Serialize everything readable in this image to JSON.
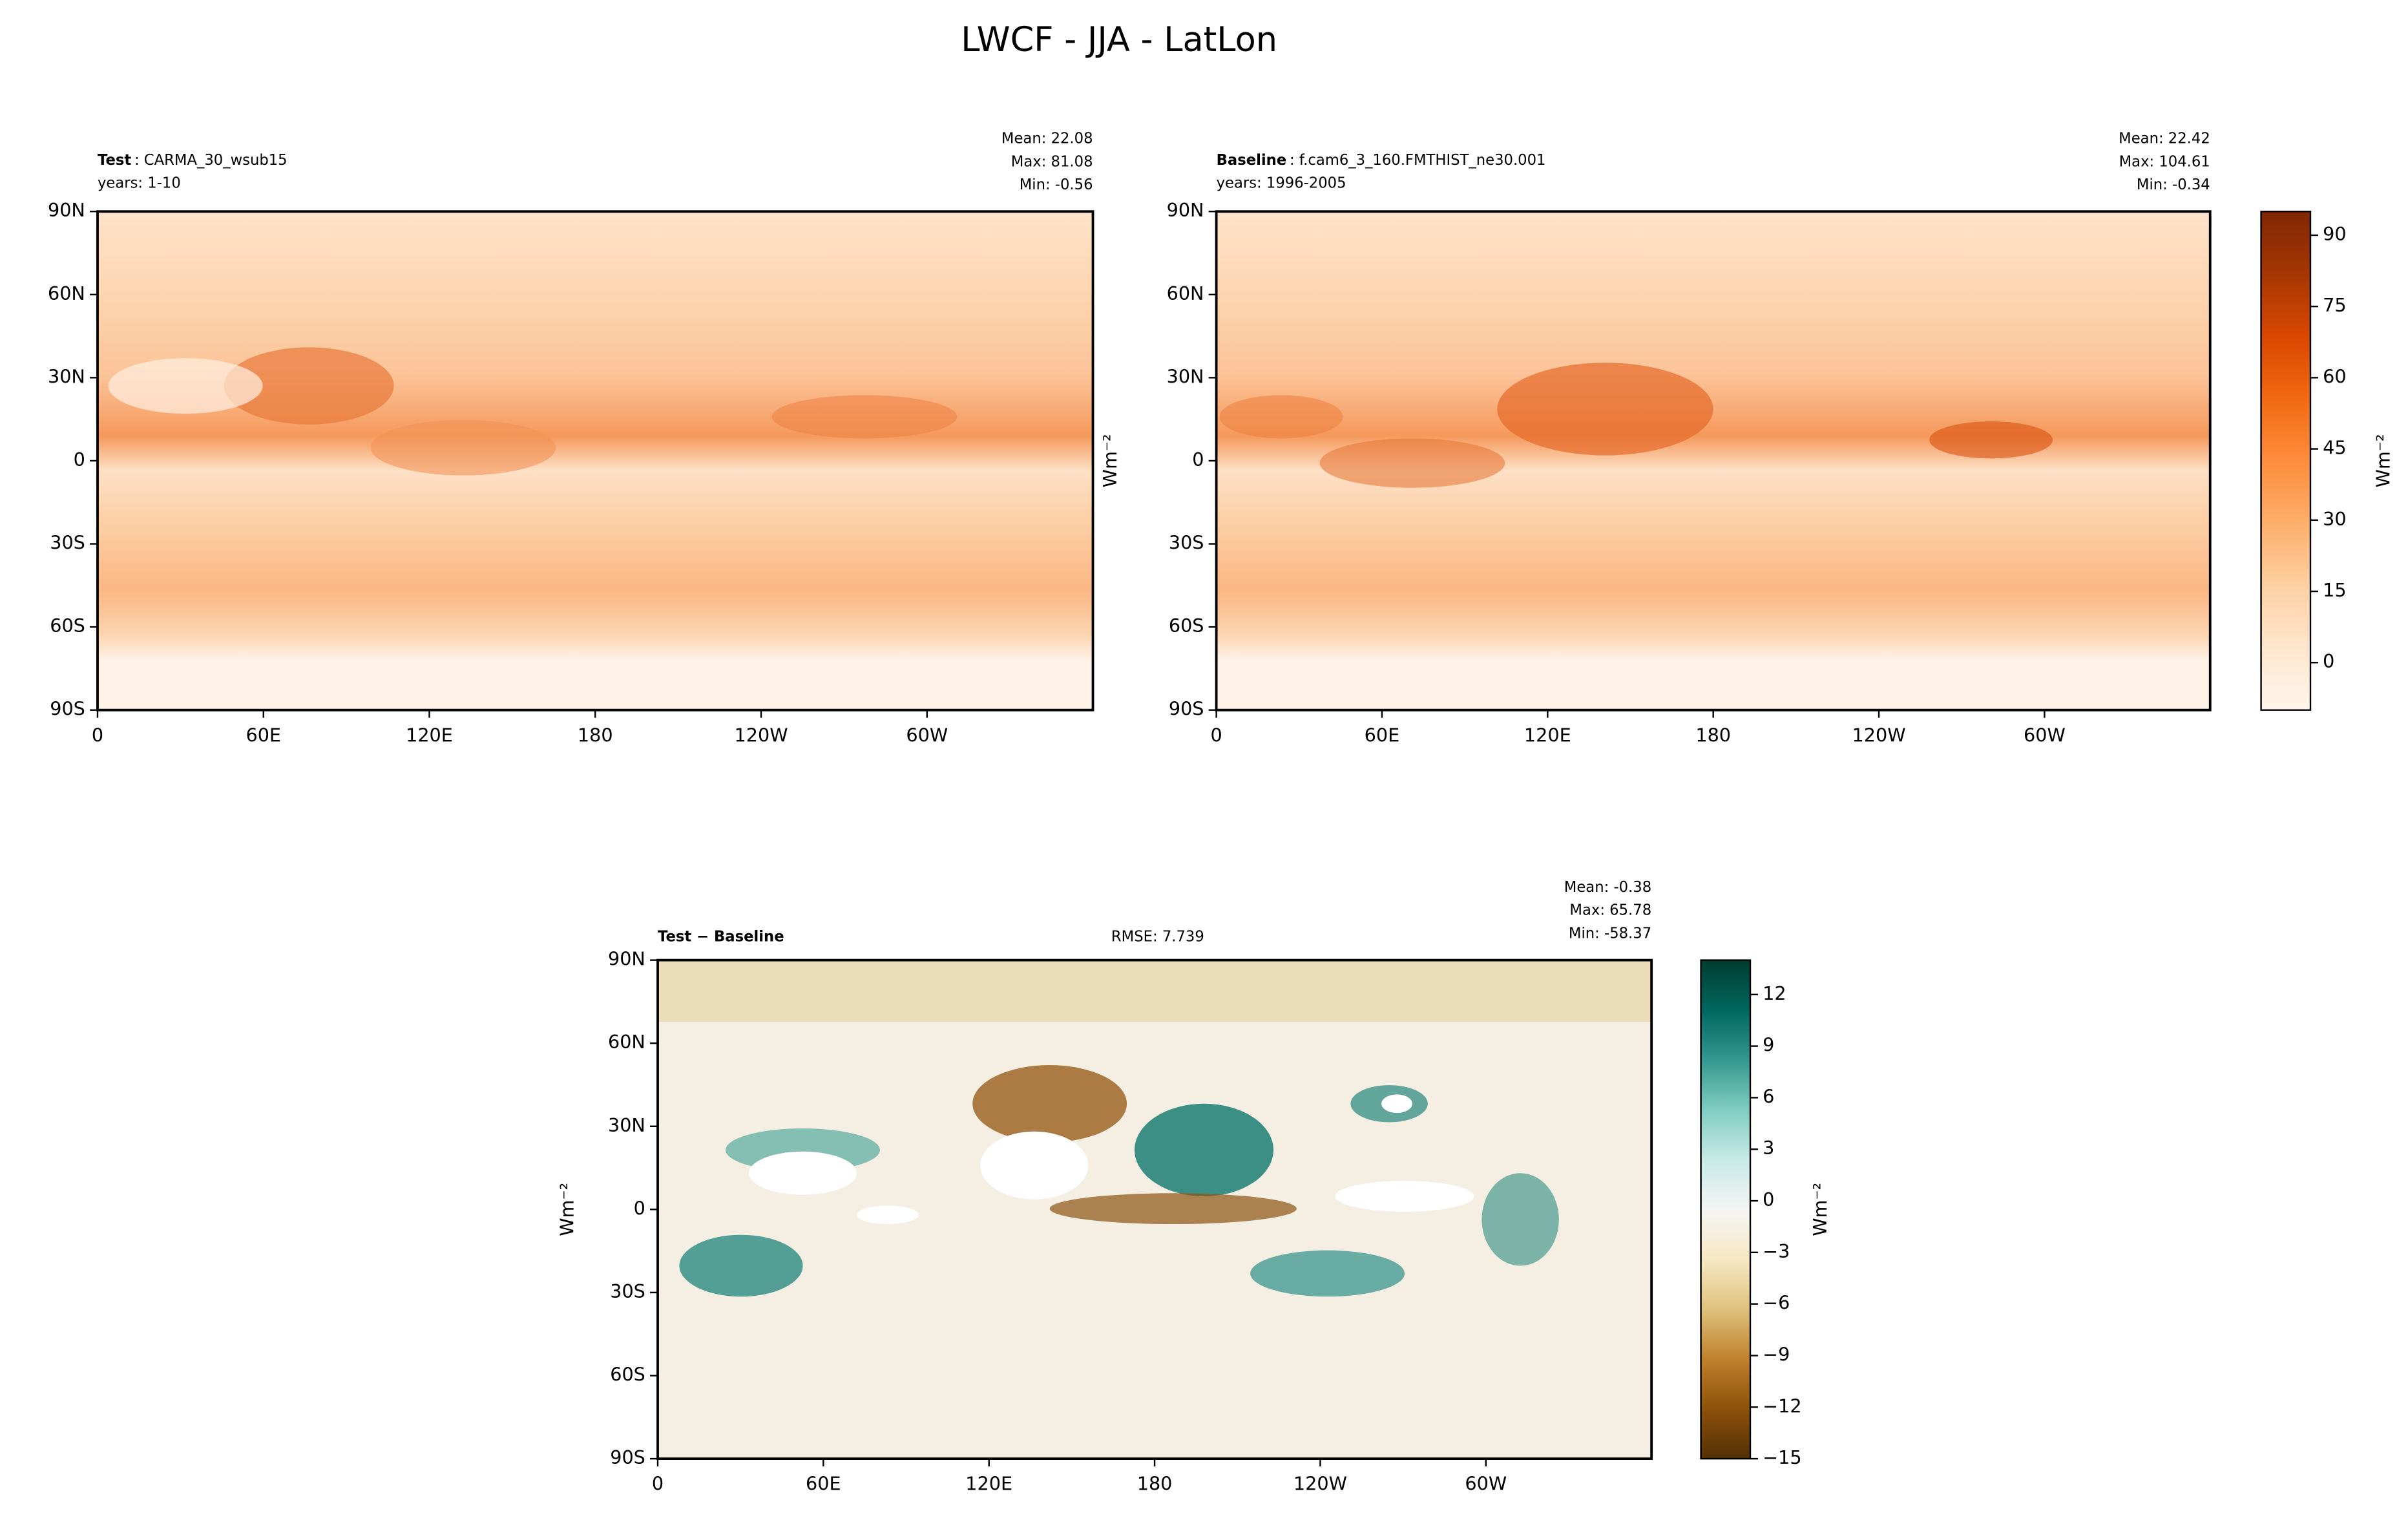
{
  "title": "LWCF - JJA - LatLon",
  "chart_data": [
    {
      "type": "map",
      "title_bold": "Test",
      "title": ": CARMA_30_wsub15",
      "subtitle": "years: 1-10",
      "stats": [
        "Mean: 22.08",
        "Max: 81.08",
        "Min: -0.56"
      ],
      "xlim": [
        0,
        360
      ],
      "xticks": [
        0,
        {
          "value": 60,
          "label": "60E"
        },
        {
          "value": 120,
          "label": "120E"
        },
        180,
        {
          "value": 240,
          "label": "120W"
        },
        {
          "value": 300,
          "label": "60W"
        }
      ],
      "ylim": [
        -90,
        90
      ],
      "yticks": [
        {
          "value": -90,
          "label": "90S"
        },
        {
          "value": -60,
          "label": "60S"
        },
        {
          "value": -30,
          "label": "30S"
        },
        0,
        {
          "value": 30,
          "label": "30N"
        },
        {
          "value": 60,
          "label": "60N"
        },
        {
          "value": 90,
          "label": "90N"
        }
      ]
    },
    {
      "type": "map",
      "title_bold": "Baseline",
      "title": ": f.cam6_3_160.FMTHIST_ne30.001",
      "subtitle": "years: 1996-2005",
      "stats": [
        "Mean: 22.42",
        "Max: 104.61",
        "Min: -0.34"
      ],
      "ylabel": "Wm⁻²",
      "xlim": [
        0,
        360
      ],
      "xticks": [
        0,
        {
          "value": 60,
          "label": "60E"
        },
        {
          "value": 120,
          "label": "120E"
        },
        180,
        {
          "value": 240,
          "label": "120W"
        },
        {
          "value": 300,
          "label": "60W"
        }
      ],
      "ylim": [
        -90,
        90
      ],
      "yticks": [
        {
          "value": -90,
          "label": "90S"
        },
        {
          "value": -60,
          "label": "60S"
        },
        {
          "value": -30,
          "label": "30S"
        },
        0,
        {
          "value": 30,
          "label": "30N"
        },
        {
          "value": 60,
          "label": "60N"
        },
        {
          "value": 90,
          "label": "90N"
        }
      ],
      "colorbar": {
        "label": "Wm⁻²",
        "lim": [
          -10,
          95
        ],
        "ticks": [
          0,
          15,
          30,
          45,
          60,
          75,
          90
        ],
        "colors": [
          "#fff5eb",
          "#fee6ce",
          "#fdd0a2",
          "#fdae6b",
          "#fd8d3c",
          "#f16913",
          "#d94801",
          "#a63603",
          "#7f2704"
        ]
      }
    },
    {
      "type": "map",
      "title_bold": "Test − Baseline",
      "rmse": "RMSE: 7.739",
      "stats": [
        "Mean: -0.38",
        "Max: 65.78",
        "Min: -58.37"
      ],
      "ylabel": "Wm⁻²",
      "xlim": [
        0,
        360
      ],
      "xticks": [
        0,
        {
          "value": 60,
          "label": "60E"
        },
        {
          "value": 120,
          "label": "120E"
        },
        180,
        {
          "value": 240,
          "label": "120W"
        },
        {
          "value": 300,
          "label": "60W"
        }
      ],
      "ylim": [
        -90,
        90
      ],
      "yticks": [
        {
          "value": -90,
          "label": "90S"
        },
        {
          "value": -60,
          "label": "60S"
        },
        {
          "value": -30,
          "label": "30S"
        },
        0,
        {
          "value": 30,
          "label": "30N"
        },
        {
          "value": 60,
          "label": "60N"
        },
        {
          "value": 90,
          "label": "90N"
        }
      ],
      "colorbar": {
        "label": "Wm⁻²",
        "lim": [
          -15,
          14
        ],
        "ticks": [
          {
            "value": -15,
            "label": "−15"
          },
          {
            "value": -12,
            "label": "−12"
          },
          {
            "value": -9,
            "label": "−9"
          },
          {
            "value": -6,
            "label": "−6"
          },
          {
            "value": -3,
            "label": "−3"
          },
          0,
          3,
          6,
          9,
          12
        ],
        "colors": [
          "#543005",
          "#8c510a",
          "#bf812d",
          "#dfc27d",
          "#f6e8c3",
          "#f5f5f5",
          "#c7eae5",
          "#80cdc1",
          "#35978f",
          "#01665e",
          "#003c30"
        ]
      }
    }
  ]
}
